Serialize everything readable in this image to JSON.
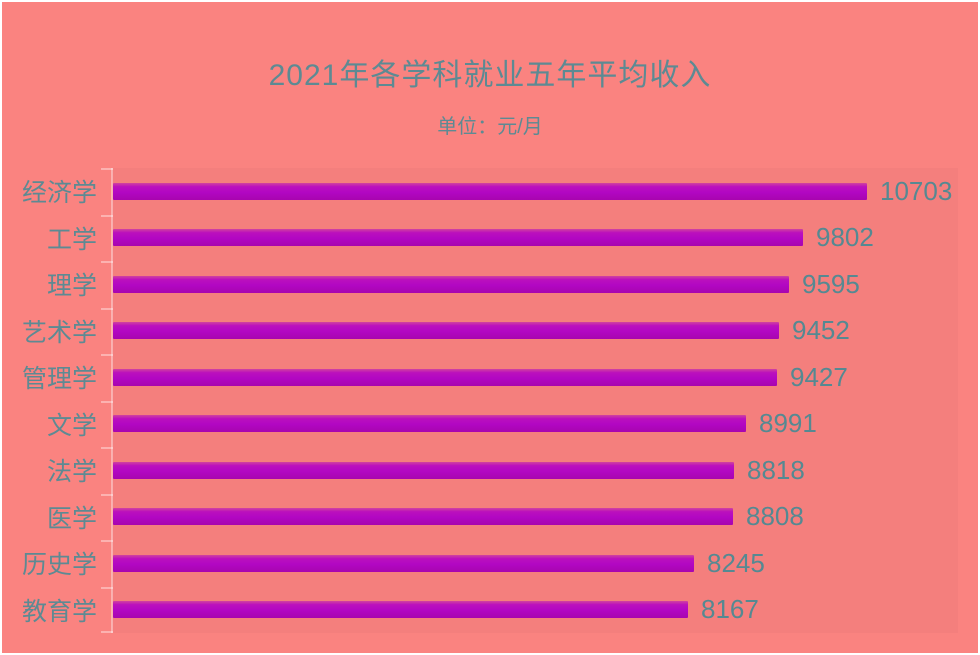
{
  "header": {
    "title": "2021年各学科就业五年平均收入",
    "subtitle": "单位：元/月"
  },
  "chart_data": {
    "type": "bar",
    "orientation": "horizontal",
    "title": "2021年各学科就业五年平均收入",
    "subtitle": "单位：元/月",
    "unit": "元/月",
    "categories": [
      "经济学",
      "工学",
      "理学",
      "艺术学",
      "管理学",
      "文学",
      "法学",
      "医学",
      "历史学",
      "教育学"
    ],
    "values": [
      10703,
      9802,
      9595,
      9452,
      9427,
      8991,
      8818,
      8808,
      8245,
      8167
    ],
    "data_labels": [
      "10703",
      "9802",
      "9595",
      "9452",
      "9427",
      "8991",
      "8818",
      "8808",
      "8245",
      "8167"
    ],
    "xlim": [
      0,
      12000
    ],
    "grid": false,
    "legend": false,
    "colors": {
      "background": "#fa8380",
      "bar": "#b207c3",
      "text": "#5d8a93",
      "axis": "rgba(255,255,255,0.38)"
    }
  }
}
